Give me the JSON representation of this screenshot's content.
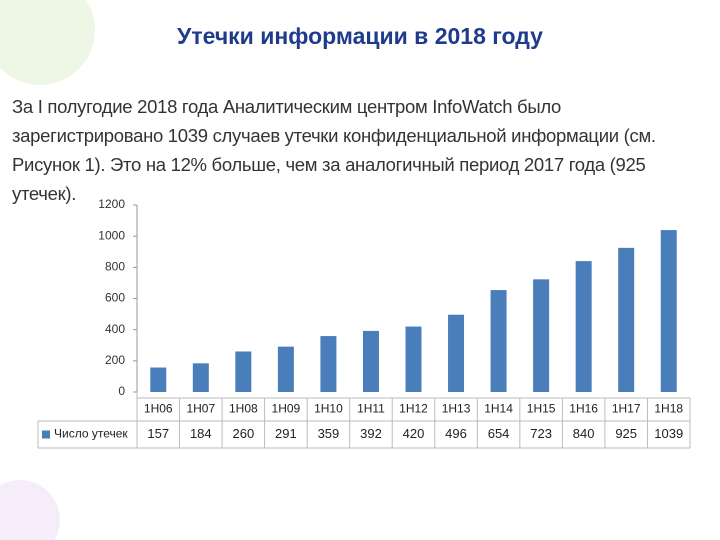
{
  "chart_data": {
    "type": "bar",
    "title": "Утечки информации в 2018 году",
    "subtitle": "За I полугодие 2018 года Аналитическим центром InfoWatch было зарегистрировано 1039 случаев утечки конфиденциальной информации (см. Рисунок 1). Это на 12% больше, чем за аналогичный период 2017 года (925 утечек).",
    "categories": [
      "1H06",
      "1H07",
      "1H08",
      "1H09",
      "1H10",
      "1H11",
      "1H12",
      "1H13",
      "1H14",
      "1H15",
      "1H16",
      "1H17",
      "1H18"
    ],
    "series": [
      {
        "name": "Число утечек",
        "color": "#4a7ebb",
        "values": [
          157,
          184,
          260,
          291,
          359,
          392,
          420,
          496,
          654,
          723,
          840,
          925,
          1039
        ]
      }
    ],
    "ylim": [
      0,
      1200
    ],
    "yticks": [
      0,
      200,
      400,
      600,
      800,
      1000,
      1200
    ]
  }
}
